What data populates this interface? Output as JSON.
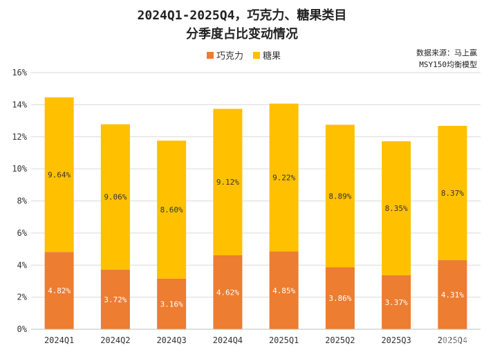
{
  "chart_data": {
    "type": "bar",
    "stacked": true,
    "title_line1": "2024Q1-2025Q4，巧克力、糖果类目",
    "title_line2": "分季度占比变动情况",
    "categories": [
      "2024Q1",
      "2024Q2",
      "2024Q3",
      "2024Q4",
      "2025Q1",
      "2025Q2",
      "2025Q3",
      "2025Q4"
    ],
    "series": [
      {
        "name": "巧克力",
        "color": "#ED7D31",
        "values": [
          4.82,
          3.72,
          3.16,
          4.62,
          4.85,
          3.86,
          3.37,
          4.31
        ],
        "labels": [
          "4.82%",
          "3.72%",
          "3.16%",
          "4.62%",
          "4.85%",
          "3.86%",
          "3.37%",
          "4.31%"
        ]
      },
      {
        "name": "糖果",
        "color": "#FFC000",
        "values": [
          9.64,
          9.06,
          8.6,
          9.12,
          9.22,
          8.89,
          8.35,
          8.37
        ],
        "labels": [
          "9.64%",
          "9.06%",
          "8.60%",
          "9.12%",
          "9.22%",
          "8.89%",
          "8.35%",
          "8.37%"
        ]
      }
    ],
    "ylim": [
      0,
      16
    ],
    "yticks": [
      "0%",
      "2%",
      "4%",
      "6%",
      "8%",
      "10%",
      "12%",
      "14%",
      "16%"
    ],
    "grid": true,
    "legend_position": "top-center"
  },
  "source": {
    "line1": "数据来源：马上赢",
    "line2": "MSY150均衡模型"
  },
  "watermark": "马上赢情报站"
}
